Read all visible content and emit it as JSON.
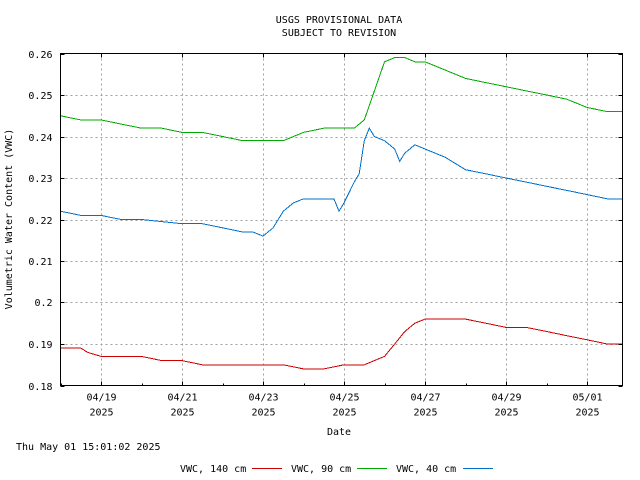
{
  "chart_data": {
    "type": "line",
    "title": "USGS PROVISIONAL DATA",
    "subtitle": "SUBJECT TO REVISION",
    "xlabel": "Date",
    "ylabel": "Volumetric Water Content (VWC)",
    "ylim": [
      0.18,
      0.26
    ],
    "y_ticks": [
      "0.18",
      "0.19",
      "0.2",
      "0.21",
      "0.22",
      "0.23",
      "0.24",
      "0.25",
      "0.26"
    ],
    "xlim": [
      "2025-04-18T00:00",
      "2025-05-01T21:00"
    ],
    "x_ticks": [
      {
        "date": "2025-04-19",
        "label": "04/19",
        "year": "2025"
      },
      {
        "date": "2025-04-21",
        "label": "04/21",
        "year": "2025"
      },
      {
        "date": "2025-04-23",
        "label": "04/23",
        "year": "2025"
      },
      {
        "date": "2025-04-25",
        "label": "04/25",
        "year": "2025"
      },
      {
        "date": "2025-04-27",
        "label": "04/27",
        "year": "2025"
      },
      {
        "date": "2025-04-29",
        "label": "04/29",
        "year": "2025"
      },
      {
        "date": "2025-05-01",
        "label": "05/01",
        "year": "2025"
      }
    ],
    "grid": true,
    "legend_position": "bottom",
    "timestamp": "Thu May 01 15:01:02 2025",
    "series": [
      {
        "name": "VWC, 140 cm",
        "color": "#cc0000",
        "points": [
          [
            "2025-04-18T00:00",
            0.189
          ],
          [
            "2025-04-18T12:00",
            0.189
          ],
          [
            "2025-04-18T16:00",
            0.188
          ],
          [
            "2025-04-19T00:00",
            0.187
          ],
          [
            "2025-04-20T00:00",
            0.187
          ],
          [
            "2025-04-20T12:00",
            0.186
          ],
          [
            "2025-04-21T00:00",
            0.186
          ],
          [
            "2025-04-21T12:00",
            0.185
          ],
          [
            "2025-04-22T00:00",
            0.185
          ],
          [
            "2025-04-23T00:00",
            0.185
          ],
          [
            "2025-04-23T12:00",
            0.185
          ],
          [
            "2025-04-24T00:00",
            0.184
          ],
          [
            "2025-04-24T12:00",
            0.184
          ],
          [
            "2025-04-25T00:00",
            0.185
          ],
          [
            "2025-04-25T06:00",
            0.185
          ],
          [
            "2025-04-25T12:00",
            0.185
          ],
          [
            "2025-04-25T18:00",
            0.186
          ],
          [
            "2025-04-26T00:00",
            0.187
          ],
          [
            "2025-04-26T06:00",
            0.19
          ],
          [
            "2025-04-26T12:00",
            0.193
          ],
          [
            "2025-04-26T18:00",
            0.195
          ],
          [
            "2025-04-27T00:00",
            0.196
          ],
          [
            "2025-04-27T12:00",
            0.196
          ],
          [
            "2025-04-28T00:00",
            0.196
          ],
          [
            "2025-04-28T12:00",
            0.195
          ],
          [
            "2025-04-29T00:00",
            0.194
          ],
          [
            "2025-04-29T12:00",
            0.194
          ],
          [
            "2025-04-30T00:00",
            0.193
          ],
          [
            "2025-04-30T12:00",
            0.192
          ],
          [
            "2025-05-01T00:00",
            0.191
          ],
          [
            "2025-05-01T12:00",
            0.19
          ],
          [
            "2025-05-01T21:00",
            0.19
          ]
        ]
      },
      {
        "name": "VWC, 90 cm",
        "color": "#00aa00",
        "points": [
          [
            "2025-04-18T00:00",
            0.245
          ],
          [
            "2025-04-18T12:00",
            0.244
          ],
          [
            "2025-04-19T00:00",
            0.244
          ],
          [
            "2025-04-19T12:00",
            0.243
          ],
          [
            "2025-04-20T00:00",
            0.242
          ],
          [
            "2025-04-20T12:00",
            0.242
          ],
          [
            "2025-04-21T00:00",
            0.241
          ],
          [
            "2025-04-21T12:00",
            0.241
          ],
          [
            "2025-04-22T00:00",
            0.24
          ],
          [
            "2025-04-22T12:00",
            0.239
          ],
          [
            "2025-04-23T00:00",
            0.239
          ],
          [
            "2025-04-23T12:00",
            0.239
          ],
          [
            "2025-04-24T00:00",
            0.241
          ],
          [
            "2025-04-24T12:00",
            0.242
          ],
          [
            "2025-04-25T00:00",
            0.242
          ],
          [
            "2025-04-25T06:00",
            0.242
          ],
          [
            "2025-04-25T12:00",
            0.244
          ],
          [
            "2025-04-25T18:00",
            0.251
          ],
          [
            "2025-04-26T00:00",
            0.258
          ],
          [
            "2025-04-26T06:00",
            0.259
          ],
          [
            "2025-04-26T12:00",
            0.259
          ],
          [
            "2025-04-26T18:00",
            0.258
          ],
          [
            "2025-04-27T00:00",
            0.258
          ],
          [
            "2025-04-27T12:00",
            0.256
          ],
          [
            "2025-04-28T00:00",
            0.254
          ],
          [
            "2025-04-28T12:00",
            0.253
          ],
          [
            "2025-04-29T00:00",
            0.252
          ],
          [
            "2025-04-29T12:00",
            0.251
          ],
          [
            "2025-04-30T00:00",
            0.25
          ],
          [
            "2025-04-30T12:00",
            0.249
          ],
          [
            "2025-05-01T00:00",
            0.247
          ],
          [
            "2025-05-01T12:00",
            0.246
          ],
          [
            "2025-05-01T21:00",
            0.246
          ]
        ]
      },
      {
        "name": "VWC, 40 cm",
        "color": "#0070cc",
        "points": [
          [
            "2025-04-18T00:00",
            0.222
          ],
          [
            "2025-04-18T12:00",
            0.221
          ],
          [
            "2025-04-19T00:00",
            0.221
          ],
          [
            "2025-04-19T12:00",
            0.22
          ],
          [
            "2025-04-20T00:00",
            0.22
          ],
          [
            "2025-04-21T00:00",
            0.219
          ],
          [
            "2025-04-21T12:00",
            0.219
          ],
          [
            "2025-04-22T00:00",
            0.218
          ],
          [
            "2025-04-22T12:00",
            0.217
          ],
          [
            "2025-04-22T18:00",
            0.217
          ],
          [
            "2025-04-23T00:00",
            0.216
          ],
          [
            "2025-04-23T06:00",
            0.218
          ],
          [
            "2025-04-23T12:00",
            0.222
          ],
          [
            "2025-04-23T18:00",
            0.224
          ],
          [
            "2025-04-24T00:00",
            0.225
          ],
          [
            "2025-04-24T12:00",
            0.225
          ],
          [
            "2025-04-24T18:00",
            0.225
          ],
          [
            "2025-04-24T21:00",
            0.222
          ],
          [
            "2025-04-25T00:00",
            0.224
          ],
          [
            "2025-04-25T06:00",
            0.229
          ],
          [
            "2025-04-25T09:00",
            0.231
          ],
          [
            "2025-04-25T12:00",
            0.239
          ],
          [
            "2025-04-25T15:00",
            0.242
          ],
          [
            "2025-04-25T18:00",
            0.24
          ],
          [
            "2025-04-26T00:00",
            0.239
          ],
          [
            "2025-04-26T06:00",
            0.237
          ],
          [
            "2025-04-26T09:00",
            0.234
          ],
          [
            "2025-04-26T12:00",
            0.236
          ],
          [
            "2025-04-26T18:00",
            0.238
          ],
          [
            "2025-04-27T00:00",
            0.237
          ],
          [
            "2025-04-27T12:00",
            0.235
          ],
          [
            "2025-04-28T00:00",
            0.232
          ],
          [
            "2025-04-28T12:00",
            0.231
          ],
          [
            "2025-04-29T00:00",
            0.23
          ],
          [
            "2025-04-29T12:00",
            0.229
          ],
          [
            "2025-04-30T00:00",
            0.228
          ],
          [
            "2025-04-30T12:00",
            0.227
          ],
          [
            "2025-05-01T00:00",
            0.226
          ],
          [
            "2025-05-01T12:00",
            0.225
          ],
          [
            "2025-05-01T21:00",
            0.225
          ]
        ]
      }
    ]
  }
}
